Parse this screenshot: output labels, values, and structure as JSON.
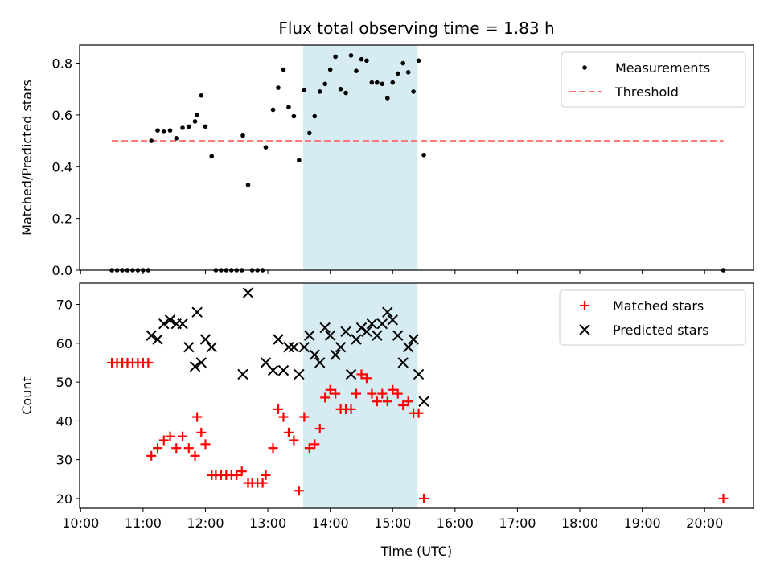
{
  "chart_data": [
    {
      "type": "scatter",
      "title": "Flux total observing time = 1.83 h",
      "xlabel": "",
      "ylabel": "Matched/Predicted stars",
      "ylim": [
        0,
        0.87
      ],
      "yticks": [
        "0.0",
        "0.2",
        "0.4",
        "0.6",
        "0.8"
      ],
      "ytick_values": [
        0,
        0.2,
        0.4,
        0.6,
        0.8
      ],
      "legend_position": "top-right",
      "highlight_span": [
        "13:34",
        "15:24"
      ],
      "series": [
        {
          "name": "Measurements",
          "marker": "dot",
          "color": "#000000",
          "points": [
            [
              "10:30",
              0
            ],
            [
              "10:35",
              0
            ],
            [
              "10:40",
              0
            ],
            [
              "10:45",
              0
            ],
            [
              "10:50",
              0
            ],
            [
              "10:55",
              0
            ],
            [
              "11:00",
              0
            ],
            [
              "11:05",
              0
            ],
            [
              "11:08",
              0.5
            ],
            [
              "11:14",
              0.54
            ],
            [
              "11:20",
              0.535
            ],
            [
              "11:26",
              0.54
            ],
            [
              "11:32",
              0.51
            ],
            [
              "11:38",
              0.55
            ],
            [
              "11:44",
              0.555
            ],
            [
              "11:50",
              0.575
            ],
            [
              "11:52",
              0.6
            ],
            [
              "11:56",
              0.675
            ],
            [
              "12:00",
              0.555
            ],
            [
              "12:06",
              0.44
            ],
            [
              "12:10",
              0
            ],
            [
              "12:15",
              0
            ],
            [
              "12:20",
              0
            ],
            [
              "12:25",
              0
            ],
            [
              "12:30",
              0
            ],
            [
              "12:35",
              0
            ],
            [
              "12:36",
              0.52
            ],
            [
              "12:41",
              0.33
            ],
            [
              "12:45",
              0
            ],
            [
              "12:50",
              0
            ],
            [
              "12:55",
              0
            ],
            [
              "12:58",
              0.475
            ],
            [
              "13:05",
              0.62
            ],
            [
              "13:10",
              0.705
            ],
            [
              "13:15",
              0.775
            ],
            [
              "13:20",
              0.63
            ],
            [
              "13:25",
              0.595
            ],
            [
              "13:30",
              0.425
            ],
            [
              "13:35",
              0.695
            ],
            [
              "13:40",
              0.53
            ],
            [
              "13:45",
              0.595
            ],
            [
              "13:50",
              0.69
            ],
            [
              "13:55",
              0.72
            ],
            [
              "14:00",
              0.775
            ],
            [
              "14:05",
              0.825
            ],
            [
              "14:10",
              0.7
            ],
            [
              "14:15",
              0.685
            ],
            [
              "14:20",
              0.83
            ],
            [
              "14:25",
              0.77
            ],
            [
              "14:30",
              0.815
            ],
            [
              "14:35",
              0.81
            ],
            [
              "14:40",
              0.725
            ],
            [
              "14:45",
              0.725
            ],
            [
              "14:50",
              0.72
            ],
            [
              "14:55",
              0.665
            ],
            [
              "15:00",
              0.725
            ],
            [
              "15:05",
              0.76
            ],
            [
              "15:10",
              0.8
            ],
            [
              "15:15",
              0.765
            ],
            [
              "15:20",
              0.69
            ],
            [
              "15:25",
              0.81
            ],
            [
              "15:30",
              0.445
            ],
            [
              "20:18",
              0
            ]
          ]
        },
        {
          "name": "Threshold",
          "marker": "dashed-line",
          "color": "#ff7070",
          "points": [
            [
              "10:30",
              0.5
            ],
            [
              "20:18",
              0.5
            ]
          ]
        }
      ]
    },
    {
      "type": "scatter",
      "title": "",
      "xlabel": "Time (UTC)",
      "ylabel": "Count",
      "ylim": [
        17.5,
        75.5
      ],
      "yticks": [
        "20",
        "30",
        "40",
        "50",
        "60",
        "70"
      ],
      "ytick_values": [
        20,
        30,
        40,
        50,
        60,
        70
      ],
      "x_axis": {
        "ticks": [
          "10:00",
          "11:00",
          "12:00",
          "13:00",
          "14:00",
          "15:00",
          "16:00",
          "17:00",
          "18:00",
          "19:00",
          "20:00"
        ],
        "range": [
          "09:59",
          "20:47"
        ]
      },
      "legend_position": "top-right",
      "highlight_span": [
        "13:34",
        "15:24"
      ],
      "series": [
        {
          "name": "Matched stars",
          "marker": "plus",
          "color": "#ff0000",
          "points": [
            [
              "10:30",
              55
            ],
            [
              "10:35",
              55
            ],
            [
              "10:40",
              55
            ],
            [
              "10:45",
              55
            ],
            [
              "10:50",
              55
            ],
            [
              "10:55",
              55
            ],
            [
              "11:00",
              55
            ],
            [
              "11:05",
              55
            ],
            [
              "11:08",
              31
            ],
            [
              "11:14",
              33
            ],
            [
              "11:20",
              35
            ],
            [
              "11:26",
              36
            ],
            [
              "11:32",
              33
            ],
            [
              "11:38",
              36
            ],
            [
              "11:44",
              33
            ],
            [
              "11:50",
              31
            ],
            [
              "11:52",
              41
            ],
            [
              "11:56",
              37
            ],
            [
              "12:00",
              34
            ],
            [
              "12:06",
              26
            ],
            [
              "12:10",
              26
            ],
            [
              "12:15",
              26
            ],
            [
              "12:20",
              26
            ],
            [
              "12:25",
              26
            ],
            [
              "12:30",
              26
            ],
            [
              "12:35",
              27
            ],
            [
              "12:41",
              24
            ],
            [
              "12:45",
              24
            ],
            [
              "12:50",
              24
            ],
            [
              "12:55",
              24
            ],
            [
              "12:58",
              26
            ],
            [
              "13:05",
              33
            ],
            [
              "13:10",
              43
            ],
            [
              "13:15",
              41
            ],
            [
              "13:20",
              37
            ],
            [
              "13:25",
              35
            ],
            [
              "13:30",
              22
            ],
            [
              "13:35",
              41
            ],
            [
              "13:40",
              33
            ],
            [
              "13:45",
              34
            ],
            [
              "13:50",
              38
            ],
            [
              "13:55",
              46
            ],
            [
              "14:00",
              48
            ],
            [
              "14:05",
              47
            ],
            [
              "14:10",
              43
            ],
            [
              "14:15",
              43
            ],
            [
              "14:20",
              43
            ],
            [
              "14:25",
              47
            ],
            [
              "14:30",
              52
            ],
            [
              "14:35",
              51
            ],
            [
              "14:40",
              47
            ],
            [
              "14:45",
              45
            ],
            [
              "14:50",
              47
            ],
            [
              "14:55",
              45
            ],
            [
              "15:00",
              48
            ],
            [
              "15:05",
              47
            ],
            [
              "15:10",
              44
            ],
            [
              "15:15",
              45
            ],
            [
              "15:20",
              42
            ],
            [
              "15:25",
              42
            ],
            [
              "15:30",
              20
            ],
            [
              "20:18",
              20
            ]
          ]
        },
        {
          "name": "Predicted stars",
          "marker": "x",
          "color": "#000000",
          "points": [
            [
              "11:08",
              62
            ],
            [
              "11:14",
              61
            ],
            [
              "11:20",
              65
            ],
            [
              "11:26",
              66
            ],
            [
              "11:32",
              65
            ],
            [
              "11:38",
              65
            ],
            [
              "11:44",
              59
            ],
            [
              "11:50",
              54
            ],
            [
              "11:52",
              68
            ],
            [
              "11:56",
              55
            ],
            [
              "12:00",
              61
            ],
            [
              "12:06",
              59
            ],
            [
              "12:36",
              52
            ],
            [
              "12:41",
              73
            ],
            [
              "12:58",
              55
            ],
            [
              "13:05",
              53
            ],
            [
              "13:10",
              61
            ],
            [
              "13:15",
              53
            ],
            [
              "13:20",
              59
            ],
            [
              "13:25",
              59
            ],
            [
              "13:30",
              52
            ],
            [
              "13:35",
              59
            ],
            [
              "13:40",
              62
            ],
            [
              "13:45",
              57
            ],
            [
              "13:50",
              55
            ],
            [
              "13:55",
              64
            ],
            [
              "14:00",
              62
            ],
            [
              "14:05",
              57
            ],
            [
              "14:10",
              59
            ],
            [
              "14:15",
              63
            ],
            [
              "14:20",
              52
            ],
            [
              "14:25",
              61
            ],
            [
              "14:30",
              64
            ],
            [
              "14:35",
              63
            ],
            [
              "14:40",
              65
            ],
            [
              "14:45",
              62
            ],
            [
              "14:50",
              65
            ],
            [
              "14:55",
              68
            ],
            [
              "15:00",
              66
            ],
            [
              "15:05",
              62
            ],
            [
              "15:10",
              55
            ],
            [
              "15:15",
              59
            ],
            [
              "15:20",
              61
            ],
            [
              "15:25",
              52
            ],
            [
              "15:30",
              45
            ]
          ]
        }
      ]
    }
  ]
}
